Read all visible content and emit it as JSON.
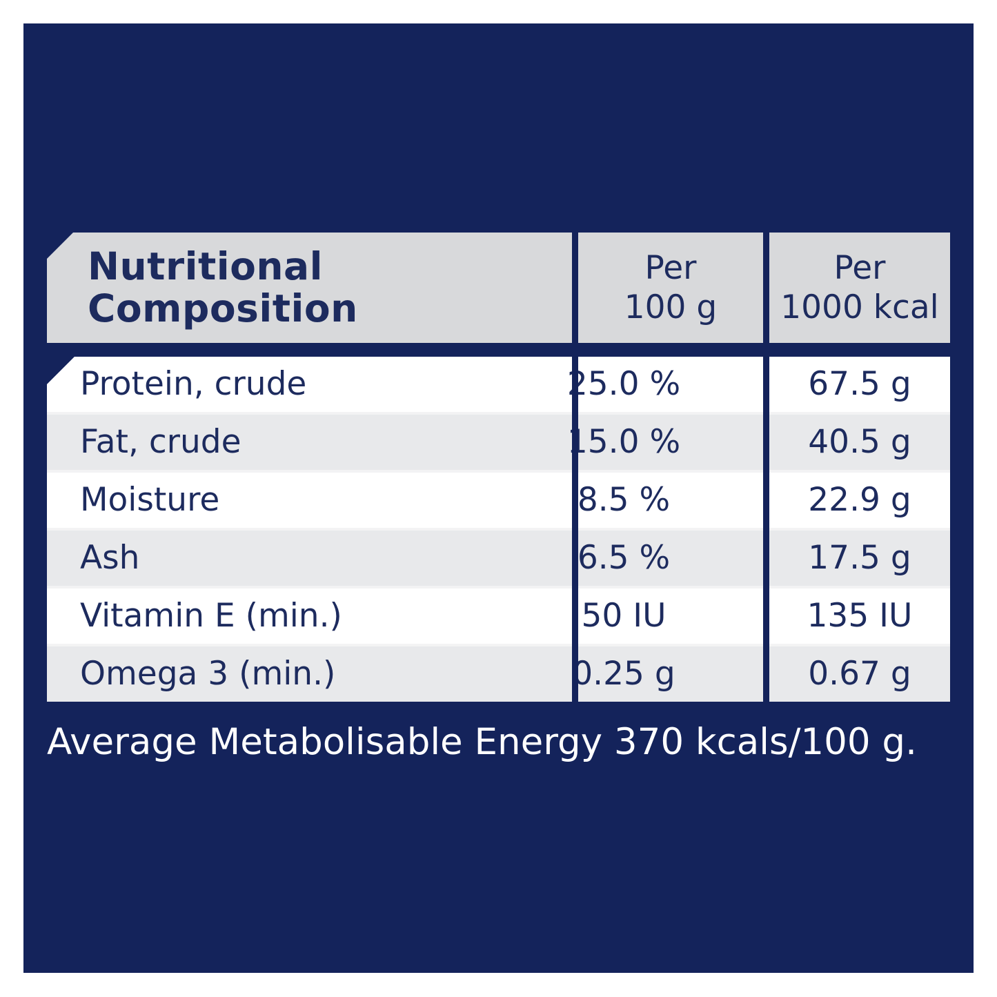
{
  "colors": {
    "background": "#ffffff",
    "panel_navy": "#14235b",
    "header_gray": "#d8d9db",
    "row_white": "#ffffff",
    "row_alt_gray": "#e8e9eb",
    "row_gap": "#f3f3f4",
    "text_navy": "#1d2b5e",
    "footer_text": "#ffffff"
  },
  "table": {
    "title_lines": [
      "Nutritional",
      "Composition"
    ],
    "columns": [
      {
        "label_lines": [
          "Per",
          "100 g"
        ]
      },
      {
        "label_lines": [
          "Per",
          "1000 kcal"
        ]
      }
    ],
    "rows": [
      {
        "label": "Protein, crude",
        "per_100g": "25.0 %",
        "per_1000kcal": "67.5 g"
      },
      {
        "label": "Fat, crude",
        "per_100g": "15.0 %",
        "per_1000kcal": "40.5 g"
      },
      {
        "label": "Moisture",
        "per_100g": "8.5 %",
        "per_1000kcal": "22.9 g"
      },
      {
        "label": "Ash",
        "per_100g": "6.5 %",
        "per_1000kcal": "17.5 g"
      },
      {
        "label": "Vitamin E (min.)",
        "per_100g": "50 IU",
        "per_1000kcal": "135 IU"
      },
      {
        "label": "Omega 3 (min.)",
        "per_100g": "0.25 g",
        "per_1000kcal": "0.67 g"
      }
    ]
  },
  "footer": {
    "text": "Average Metabolisable Energy 370 kcals/100 g."
  }
}
